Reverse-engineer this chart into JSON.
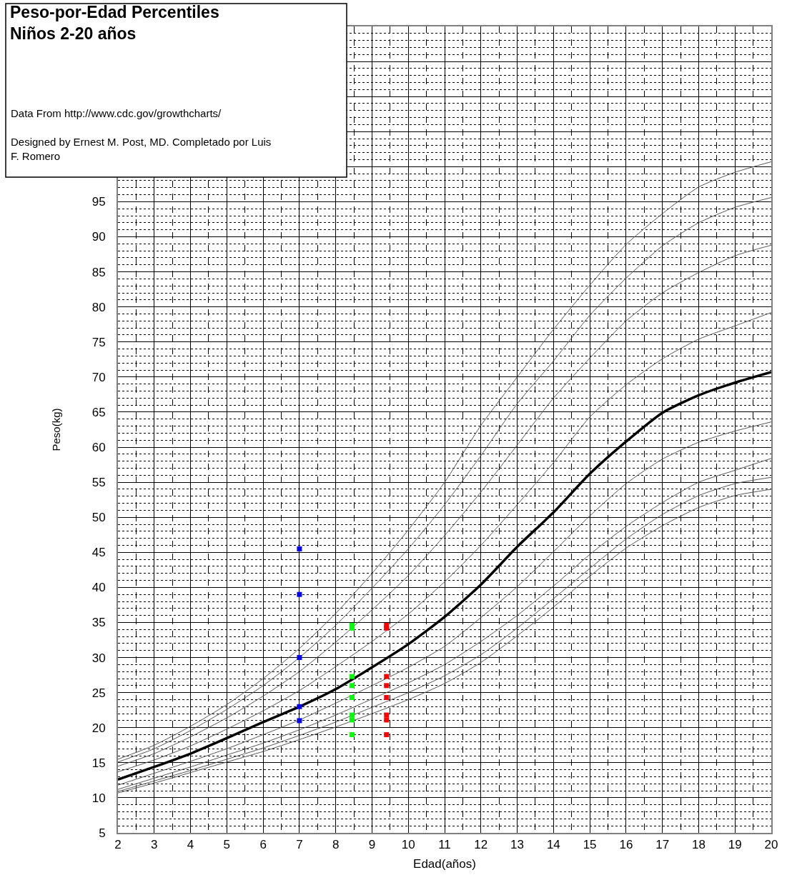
{
  "chart_data": {
    "type": "line",
    "title": "Peso-por-Edad Percentiles\nNiños 2-20 años",
    "xlabel": "Edad(años)",
    "ylabel": "Peso(kg)",
    "annotations": [
      "Data From http://www.cdc.gov/growthcharts/",
      "Designed by Ernest M. Post, MD. Completado por Luis F. Romero"
    ],
    "x": [
      2,
      3,
      4,
      5,
      6,
      7,
      8,
      9,
      10,
      11,
      12,
      13,
      14,
      15,
      16,
      17,
      18,
      19,
      20
    ],
    "series": [
      {
        "color": "#555555",
        "values": [
          10.7,
          12.1,
          13.6,
          15.1,
          16.6,
          18.3,
          20.1,
          22.0,
          24.0,
          26.3,
          29.3,
          33.1,
          37.2,
          41.6,
          45.6,
          48.8,
          51.4,
          53.1,
          54.0
        ]
      },
      {
        "color": "#555555",
        "values": [
          10.9,
          12.4,
          13.9,
          15.5,
          17.1,
          18.9,
          20.8,
          22.9,
          25.0,
          27.4,
          30.4,
          34.2,
          38.4,
          42.7,
          46.9,
          50.4,
          53.1,
          54.8,
          55.7
        ]
      },
      {
        "color": "#555555",
        "values": [
          11.2,
          12.8,
          14.4,
          16.1,
          17.8,
          19.7,
          21.8,
          24.1,
          26.4,
          29.0,
          32.3,
          36.0,
          40.2,
          44.7,
          48.7,
          52.1,
          55.0,
          56.7,
          58.4
        ]
      },
      {
        "color": "#555555",
        "values": [
          11.8,
          13.5,
          15.2,
          17.0,
          19.0,
          21.1,
          23.5,
          26.0,
          28.6,
          31.6,
          35.7,
          40.1,
          45.1,
          50.2,
          54.8,
          58.3,
          60.7,
          62.3,
          63.6
        ]
      },
      {
        "color": "#000000",
        "values": [
          12.6,
          14.4,
          16.3,
          18.5,
          20.8,
          23.0,
          25.5,
          28.6,
          31.9,
          35.8,
          40.4,
          45.8,
          50.7,
          56.2,
          60.8,
          64.9,
          67.4,
          69.2,
          70.7
        ]
      },
      {
        "color": "#555555",
        "values": [
          13.7,
          15.4,
          17.4,
          19.8,
          22.4,
          25.3,
          28.7,
          32.3,
          36.2,
          40.8,
          46.0,
          51.8,
          57.8,
          64.3,
          68.9,
          72.6,
          75.4,
          77.3,
          79.2
        ]
      },
      {
        "color": "#555555",
        "values": [
          14.5,
          16.3,
          18.7,
          21.4,
          24.5,
          28.0,
          32.2,
          36.8,
          41.7,
          47.4,
          53.6,
          60.3,
          67.0,
          72.7,
          78.0,
          82.0,
          84.9,
          87.3,
          88.8
        ]
      },
      {
        "color": "#555555",
        "values": [
          15.1,
          17.0,
          19.6,
          22.6,
          26.0,
          30.0,
          34.6,
          39.9,
          45.5,
          51.8,
          58.8,
          66.2,
          72.3,
          78.8,
          84.1,
          88.7,
          92.0,
          94.2,
          95.6
        ]
      },
      {
        "color": "#555555",
        "values": [
          15.5,
          17.5,
          20.2,
          23.3,
          27.0,
          31.3,
          36.3,
          42.0,
          48.2,
          55.0,
          63.1,
          70.0,
          76.8,
          83.1,
          88.9,
          93.3,
          97.1,
          99.2,
          100.7
        ]
      },
      {
        "type": "scatter",
        "marker": "square",
        "color": "#0000ff",
        "x": [
          7,
          7,
          7,
          7,
          7
        ],
        "values": [
          45.5,
          39.0,
          30.0,
          23.0,
          21.0
        ]
      },
      {
        "type": "scatter",
        "marker": "square",
        "color": "#00ff00",
        "x": [
          8.45,
          8.45,
          8.45,
          8.45,
          8.45,
          8.45,
          8.45,
          8.45
        ],
        "values": [
          34.6,
          34.2,
          27.3,
          26.0,
          24.3,
          21.8,
          21.1,
          19.0
        ]
      },
      {
        "type": "scatter",
        "marker": "square",
        "color": "#ff0000",
        "x": [
          9.4,
          9.4,
          9.4,
          9.4,
          9.4,
          9.4,
          9.4,
          9.4
        ],
        "values": [
          34.6,
          34.2,
          27.3,
          26.0,
          24.3,
          21.8,
          21.1,
          19.0
        ]
      }
    ],
    "xlim": [
      2,
      20
    ],
    "xticks": [
      2,
      3,
      4,
      5,
      6,
      7,
      8,
      9,
      10,
      11,
      12,
      13,
      14,
      15,
      16,
      17,
      18,
      19,
      20
    ],
    "ylim": [
      5,
      120
    ],
    "yticks": [
      5,
      10,
      15,
      20,
      25,
      30,
      35,
      40,
      45,
      50,
      55,
      60,
      65,
      70,
      75,
      80,
      85,
      90,
      95,
      {
        "value": 100,
        "label": null
      },
      {
        "value": 105,
        "label": null
      },
      {
        "value": 110,
        "label": null
      },
      {
        "value": 115,
        "label": null
      },
      {
        "value": 120,
        "label": null
      }
    ],
    "grid": true,
    "marker": "none"
  }
}
